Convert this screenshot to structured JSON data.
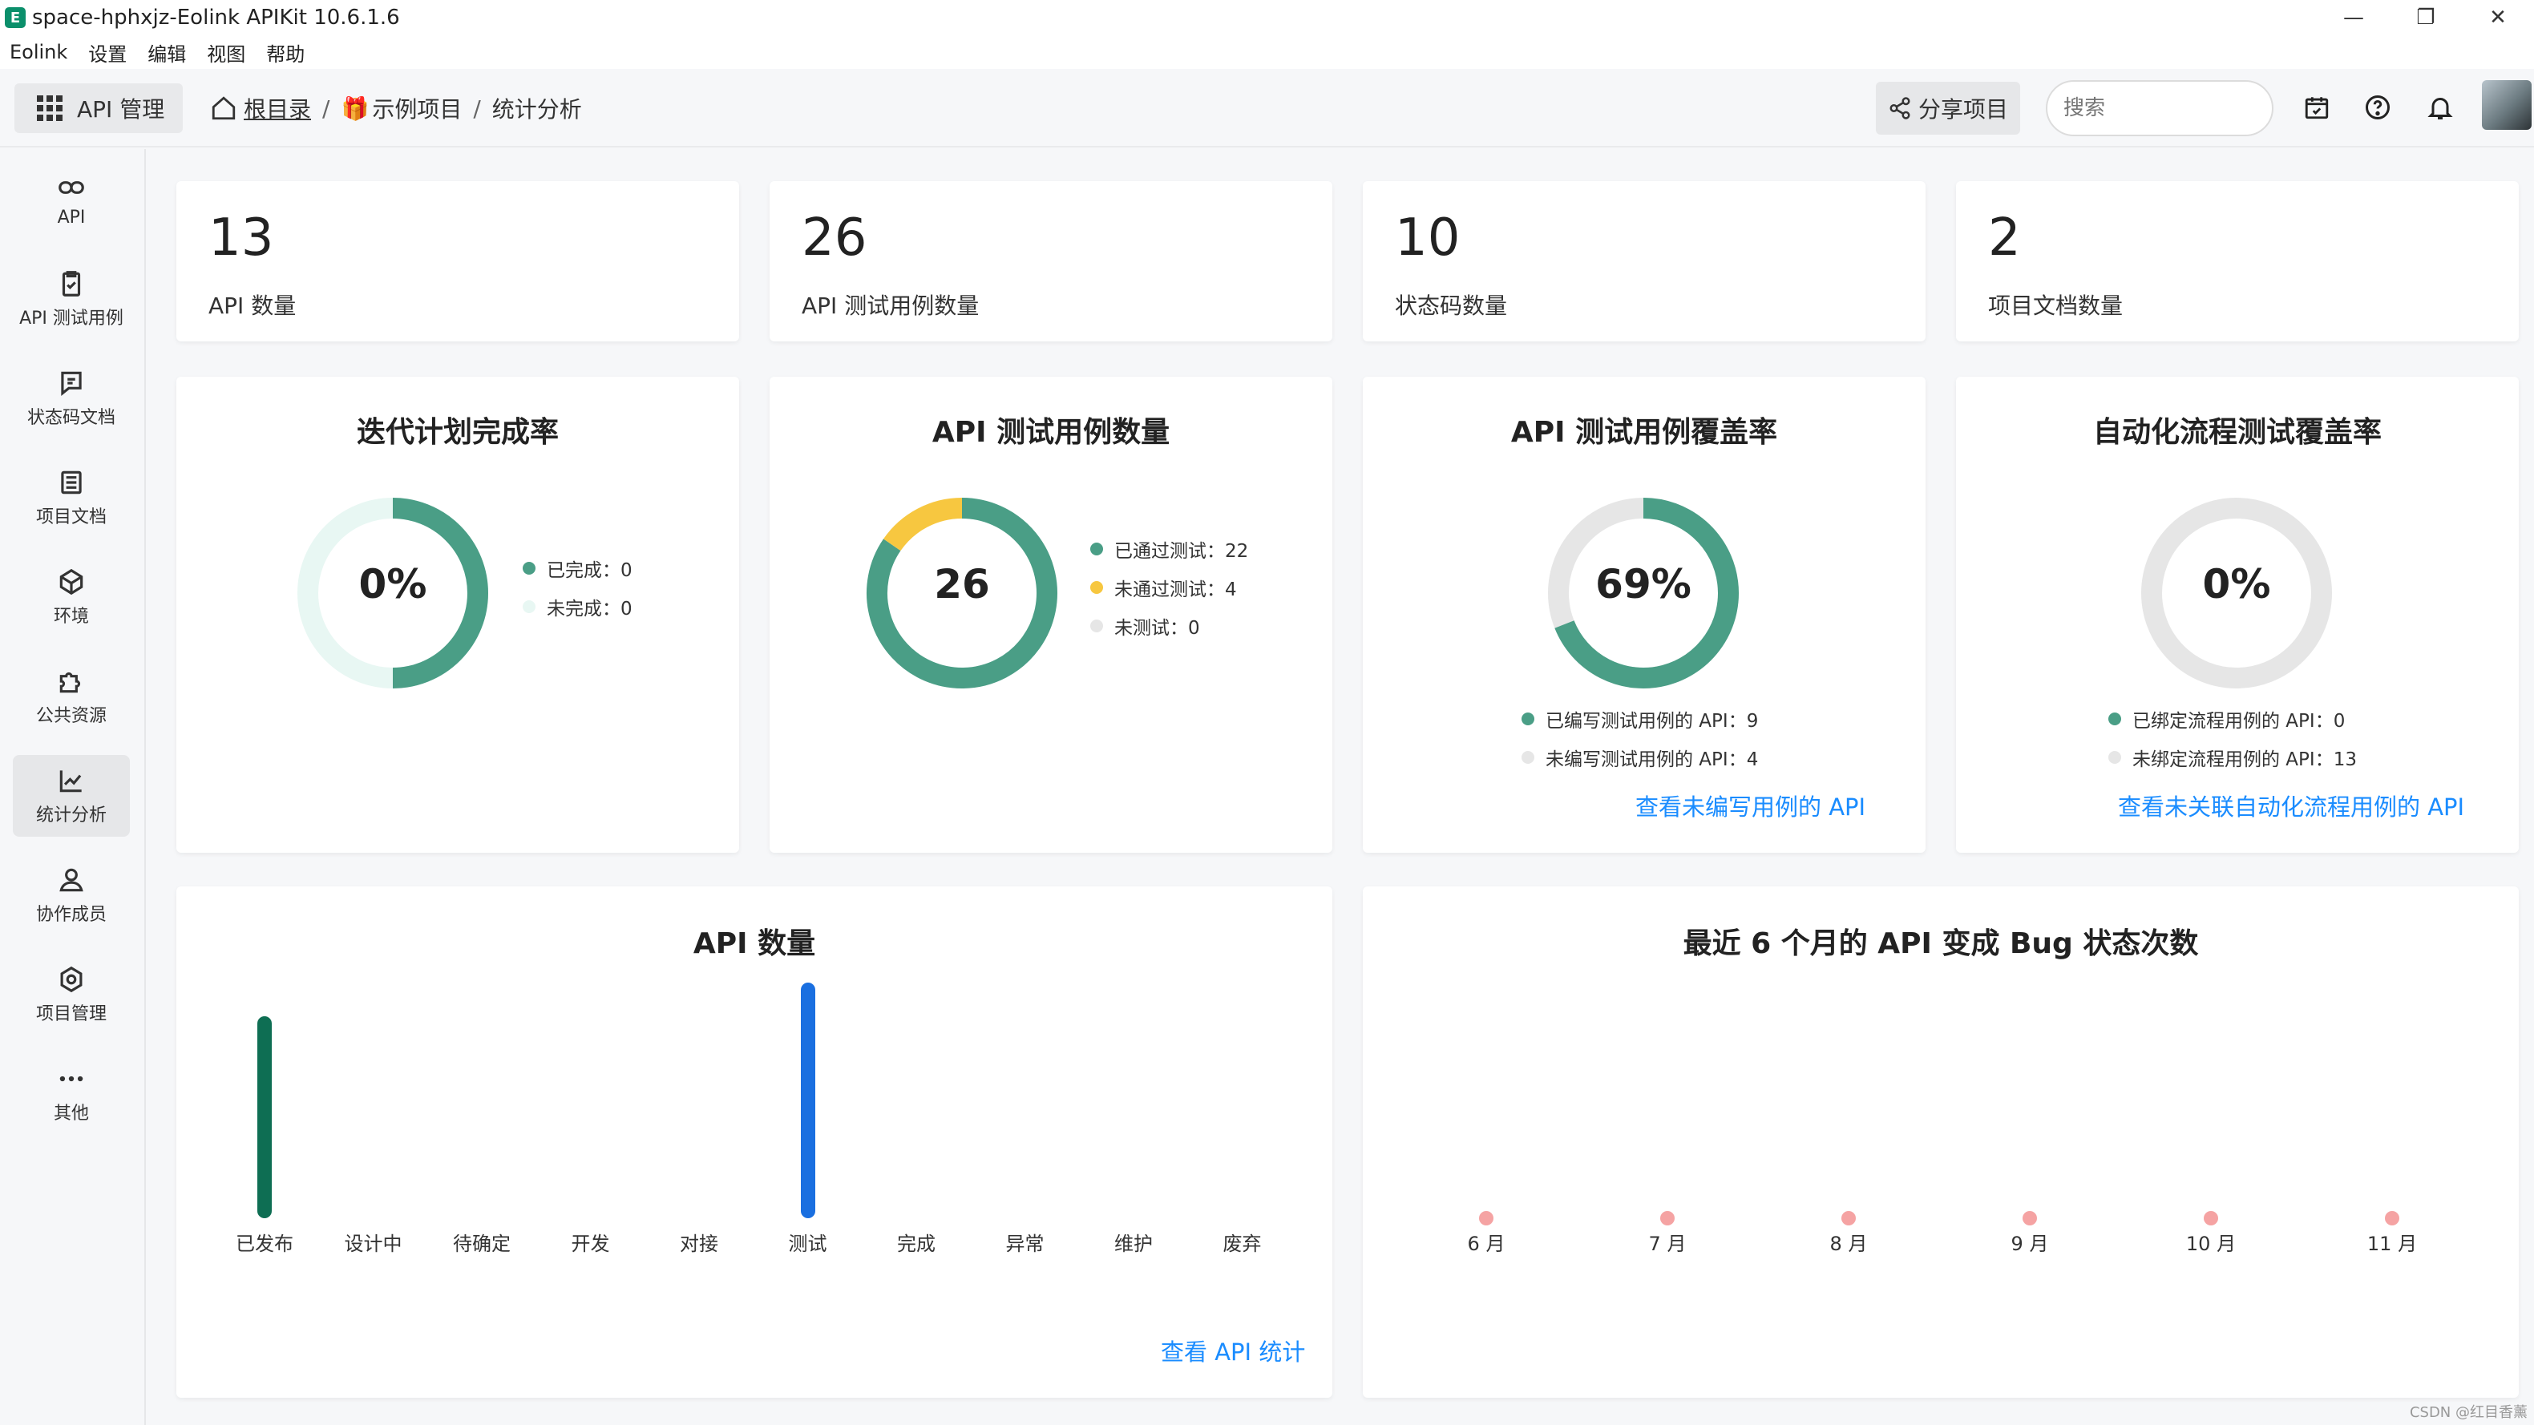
{
  "window": {
    "title": "space-hphxjz-Eolink APIKit 10.6.1.6",
    "controls": [
      "—",
      "❐",
      "✕"
    ]
  },
  "menu": [
    "Eolink",
    "设置",
    "编辑",
    "视图",
    "帮助"
  ],
  "topnav": {
    "module_label": "API 管理",
    "breadcrumb": {
      "home": "根目录",
      "sep": "/",
      "project": "示例项目",
      "page": "统计分析"
    },
    "share_label": "分享项目",
    "search_placeholder": "搜索"
  },
  "sidebar": {
    "items": [
      {
        "label": "API",
        "icon": "link-icon"
      },
      {
        "label": "API 测试用例",
        "icon": "clipboard-check-icon"
      },
      {
        "label": "状态码文档",
        "icon": "message-doc-icon"
      },
      {
        "label": "项目文档",
        "icon": "document-icon"
      },
      {
        "label": "环境",
        "icon": "cube-icon"
      },
      {
        "label": "公共资源",
        "icon": "puzzle-icon"
      },
      {
        "label": "统计分析",
        "icon": "chart-line-icon",
        "active": true
      },
      {
        "label": "协作成员",
        "icon": "user-icon"
      },
      {
        "label": "项目管理",
        "icon": "settings-icon"
      },
      {
        "label": "其他",
        "icon": "more-icon"
      }
    ]
  },
  "stats": [
    {
      "value": "13",
      "label": "API 数量"
    },
    {
      "value": "26",
      "label": "API 测试用例数量"
    },
    {
      "value": "10",
      "label": "状态码数量"
    },
    {
      "value": "2",
      "label": "项目文档数量"
    }
  ],
  "iteration": {
    "title": "迭代计划完成率",
    "center": "0%",
    "legend": [
      {
        "text": "已完成：0",
        "color": "#4a9e86"
      },
      {
        "text": "未完成：0",
        "color": "#e8f7f3"
      }
    ]
  },
  "testcases": {
    "title": "API 测试用例数量",
    "center": "26",
    "legend": [
      {
        "text": "已通过测试：22",
        "color": "#4a9e86",
        "value": 22
      },
      {
        "text": "未通过测试：4",
        "color": "#f7c740",
        "value": 4
      },
      {
        "text": "未测试：0",
        "color": "#e6e6e6",
        "value": 0
      }
    ]
  },
  "coverage": {
    "title": "API 测试用例覆盖率",
    "center": "69%",
    "fraction": 0.69,
    "legend": [
      {
        "text": "已编写测试用例的 API：9",
        "color": "#4a9e86"
      },
      {
        "text": "未编写测试用例的 API：4",
        "color": "#e6e6e6"
      }
    ],
    "link": "查看未编写用例的 API"
  },
  "automation": {
    "title": "自动化流程测试覆盖率",
    "center": "0%",
    "fraction": 0,
    "legend": [
      {
        "text": "已绑定流程用例的 API：0",
        "color": "#4a9e86"
      },
      {
        "text": "未绑定流程用例的 API：13",
        "color": "#e6e6e6"
      }
    ],
    "link": "查看未关联自动化流程用例的 API"
  },
  "api_count_chart": {
    "title": "API 数量",
    "link": "查看 API 统计",
    "chart_data": {
      "type": "bar",
      "categories": [
        "已发布",
        "设计中",
        "待确定",
        "开发",
        "对接",
        "测试",
        "完成",
        "异常",
        "维护",
        "废弃"
      ],
      "values": [
        6,
        0,
        0,
        0,
        0,
        7,
        0,
        0,
        0,
        0
      ],
      "colors": [
        "#0e6e53",
        "#1a6fe0"
      ],
      "ylim": [
        0,
        7
      ]
    }
  },
  "bug_chart": {
    "title": "最近 6 个月的 API 变成 Bug 状态次数",
    "chart_data": {
      "type": "scatter",
      "categories": [
        "6 月",
        "7 月",
        "8 月",
        "9 月",
        "10 月",
        "11 月"
      ],
      "values": [
        0,
        0,
        0,
        0,
        0,
        0
      ],
      "color": "#f5a3a3"
    }
  },
  "watermark": "CSDN @红目香薰"
}
